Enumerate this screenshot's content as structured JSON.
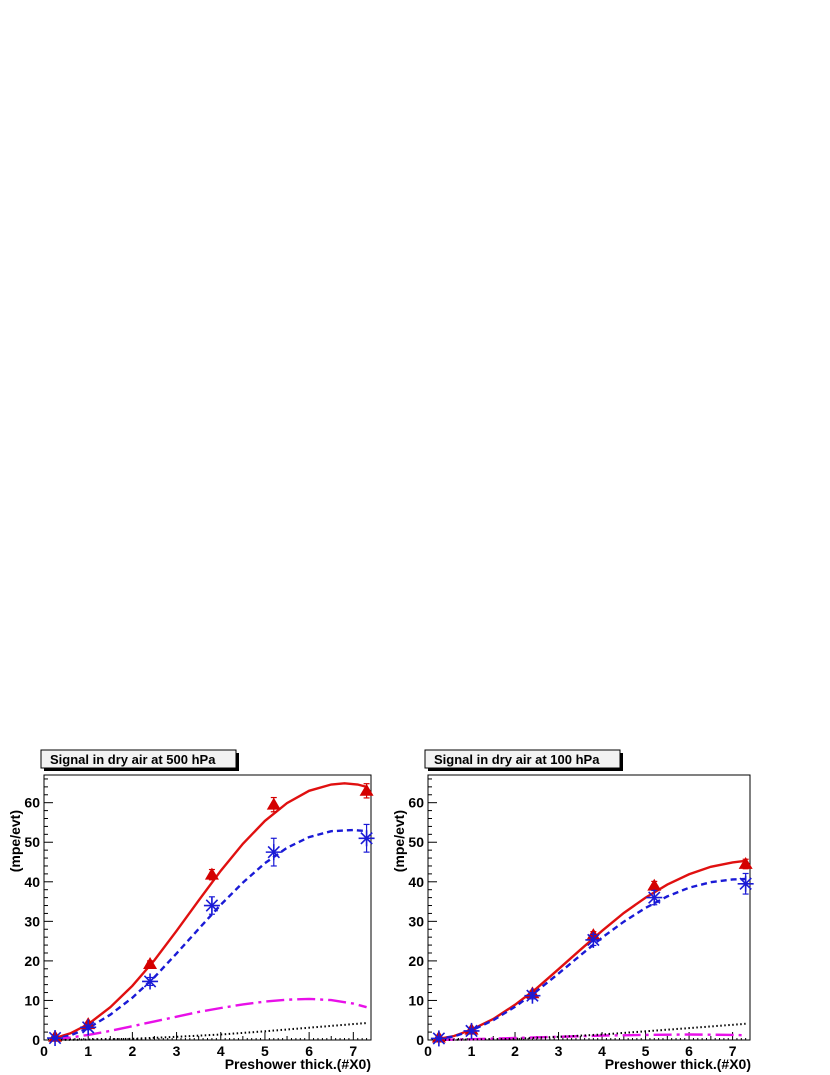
{
  "chart_data": [
    {
      "type": "line",
      "title": "Signal in dry air at 500 hPa",
      "xlabel": "Preshower thick.(#X0)",
      "ylabel": "(mpe/evt)",
      "xlim": [
        0,
        7.4
      ],
      "ylim": [
        0,
        67
      ],
      "x_ticks": [
        "0",
        "1",
        "2",
        "3",
        "4",
        "5",
        "6",
        "7"
      ],
      "y_ticks": [
        "0",
        "10",
        "20",
        "30",
        "40",
        "50",
        "60"
      ],
      "grid": false,
      "legend": "none",
      "markers": [
        {
          "marker": "triangle",
          "color": "#d40000",
          "points": [
            {
              "x": 0.25,
              "y": 0.8,
              "err": 0.3
            },
            {
              "x": 1.0,
              "y": 4.0,
              "err": 0.5
            },
            {
              "x": 2.4,
              "y": 19.2,
              "err": 0.8
            },
            {
              "x": 3.8,
              "y": 41.8,
              "err": 1.3
            },
            {
              "x": 5.2,
              "y": 59.5,
              "err": 1.8
            },
            {
              "x": 7.3,
              "y": 63.0,
              "err": 1.8
            }
          ]
        },
        {
          "marker": "asterisk",
          "color": "#1a1ad6",
          "points": [
            {
              "x": 0.25,
              "y": 0.5,
              "err": 0.3
            },
            {
              "x": 1.0,
              "y": 3.2,
              "err": 0.6
            },
            {
              "x": 2.4,
              "y": 14.8,
              "err": 1.0
            },
            {
              "x": 3.8,
              "y": 34.0,
              "err": 2.2
            },
            {
              "x": 5.2,
              "y": 47.5,
              "err": 3.5
            },
            {
              "x": 7.3,
              "y": 51.0,
              "err": 3.5
            }
          ]
        }
      ],
      "curves": [
        {
          "style": "solid",
          "color": "#e01010",
          "x": [
            0.2,
            0.6,
            1.0,
            1.5,
            2.0,
            2.5,
            3.0,
            3.5,
            4.0,
            4.5,
            5.0,
            5.5,
            6.0,
            6.5,
            6.8,
            7.1,
            7.3
          ],
          "y": [
            0.3,
            1.7,
            4.0,
            8.3,
            13.7,
            20.2,
            27.6,
            35.3,
            42.8,
            49.6,
            55.4,
            59.9,
            63.0,
            64.6,
            64.9,
            64.6,
            64.0
          ]
        },
        {
          "style": "dashed",
          "color": "#1a1ad6",
          "x": [
            0.2,
            0.6,
            1.0,
            1.5,
            2.0,
            2.5,
            3.0,
            3.5,
            4.0,
            4.5,
            5.0,
            5.5,
            6.0,
            6.5,
            7.0,
            7.3
          ],
          "y": [
            0.2,
            1.2,
            3.0,
            6.4,
            10.7,
            15.9,
            21.9,
            28.1,
            34.2,
            39.8,
            44.7,
            48.6,
            51.3,
            52.8,
            53.1,
            52.8
          ]
        },
        {
          "style": "dashdot",
          "color": "#e810e8",
          "x": [
            0.2,
            0.6,
            1.0,
            1.5,
            2.0,
            2.5,
            3.0,
            3.5,
            4.0,
            4.5,
            5.0,
            5.5,
            6.0,
            6.5,
            7.0,
            7.3
          ],
          "y": [
            0.1,
            0.6,
            1.3,
            2.3,
            3.5,
            4.7,
            5.9,
            7.1,
            8.1,
            9.0,
            9.7,
            10.2,
            10.4,
            10.1,
            9.2,
            8.3
          ]
        },
        {
          "style": "dotted",
          "color": "#000000",
          "x": [
            0.2,
            1.0,
            2.0,
            3.0,
            4.0,
            5.0,
            6.0,
            7.3
          ],
          "y": [
            0.0,
            0.1,
            0.3,
            0.8,
            1.4,
            2.2,
            3.1,
            4.3
          ]
        }
      ]
    },
    {
      "type": "line",
      "title": "Signal in dry air at 100 hPa",
      "xlabel": "Preshower thick.(#X0)",
      "ylabel": "(mpe/evt)",
      "xlim": [
        0,
        7.4
      ],
      "ylim": [
        0,
        67
      ],
      "x_ticks": [
        "0",
        "1",
        "2",
        "3",
        "4",
        "5",
        "6",
        "7"
      ],
      "y_ticks": [
        "0",
        "10",
        "20",
        "30",
        "40",
        "50",
        "60"
      ],
      "grid": false,
      "legend": "none",
      "markers": [
        {
          "marker": "triangle",
          "color": "#d40000",
          "points": [
            {
              "x": 0.25,
              "y": 0.6,
              "err": 0.3
            },
            {
              "x": 1.0,
              "y": 2.6,
              "err": 0.4
            },
            {
              "x": 2.4,
              "y": 11.8,
              "err": 0.6
            },
            {
              "x": 3.8,
              "y": 26.5,
              "err": 0.9
            },
            {
              "x": 5.2,
              "y": 39.0,
              "err": 1.1
            },
            {
              "x": 7.3,
              "y": 44.5,
              "err": 1.2
            }
          ]
        },
        {
          "marker": "asterisk",
          "color": "#1a1ad6",
          "points": [
            {
              "x": 0.25,
              "y": 0.4,
              "err": 0.3
            },
            {
              "x": 1.0,
              "y": 2.3,
              "err": 0.5
            },
            {
              "x": 2.4,
              "y": 11.2,
              "err": 0.8
            },
            {
              "x": 3.8,
              "y": 25.3,
              "err": 1.4
            },
            {
              "x": 5.2,
              "y": 36.0,
              "err": 1.8
            },
            {
              "x": 7.3,
              "y": 39.5,
              "err": 2.6
            }
          ]
        }
      ],
      "curves": [
        {
          "style": "solid",
          "color": "#e01010",
          "x": [
            0.2,
            0.6,
            1.0,
            1.5,
            2.0,
            2.5,
            3.0,
            3.5,
            4.0,
            4.5,
            5.0,
            5.5,
            6.0,
            6.5,
            7.0,
            7.3
          ],
          "y": [
            0.2,
            1.0,
            2.6,
            5.3,
            8.9,
            13.1,
            17.9,
            22.8,
            27.6,
            32.1,
            36.0,
            39.3,
            41.9,
            43.8,
            44.9,
            45.3
          ]
        },
        {
          "style": "dashed",
          "color": "#1a1ad6",
          "x": [
            0.2,
            0.6,
            1.0,
            1.5,
            2.0,
            2.5,
            3.0,
            3.5,
            4.0,
            4.5,
            5.0,
            5.5,
            6.0,
            6.5,
            7.0,
            7.3
          ],
          "y": [
            0.2,
            0.9,
            2.4,
            5.0,
            8.4,
            12.4,
            16.8,
            21.4,
            25.9,
            29.9,
            33.4,
            36.3,
            38.5,
            39.9,
            40.6,
            40.7
          ]
        },
        {
          "style": "dashdot",
          "color": "#e810e8",
          "x": [
            0.2,
            1.0,
            2.0,
            3.0,
            4.0,
            5.0,
            6.0,
            7.0,
            7.3
          ],
          "y": [
            0.0,
            0.2,
            0.5,
            0.8,
            1.1,
            1.3,
            1.4,
            1.3,
            1.2
          ]
        },
        {
          "style": "dotted",
          "color": "#000000",
          "x": [
            0.2,
            1.0,
            2.0,
            3.0,
            4.0,
            5.0,
            6.0,
            7.3
          ],
          "y": [
            0.0,
            0.1,
            0.3,
            0.8,
            1.4,
            2.2,
            3.0,
            4.1
          ]
        }
      ]
    }
  ]
}
